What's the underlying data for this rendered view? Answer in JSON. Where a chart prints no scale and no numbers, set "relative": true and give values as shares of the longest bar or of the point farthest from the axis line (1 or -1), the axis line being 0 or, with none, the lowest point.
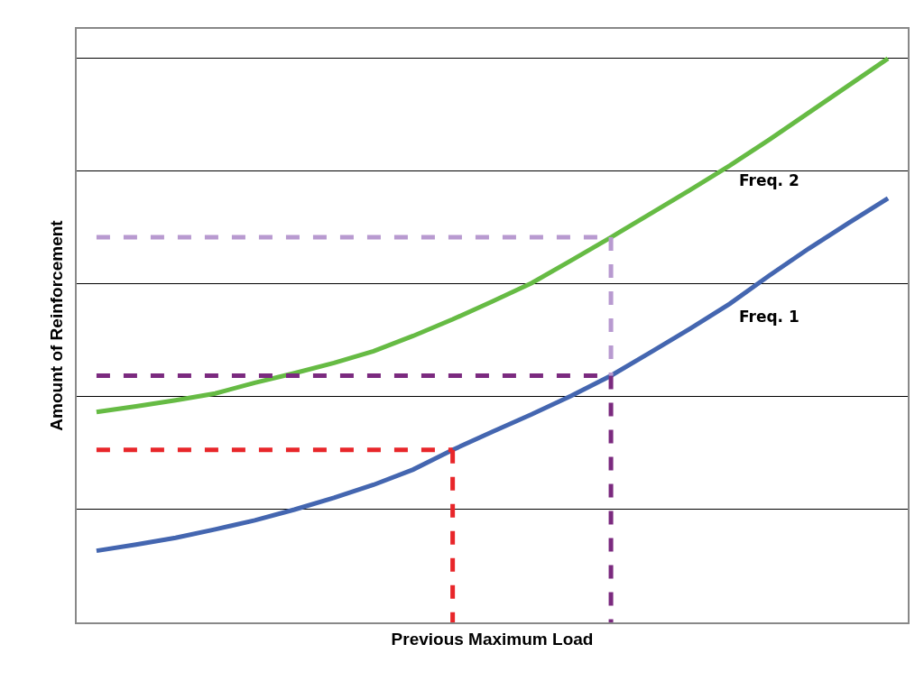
{
  "chart_data": {
    "type": "line",
    "relative": true,
    "xlabel": "Previous Maximum Load",
    "ylabel": "Amount of Reinforcement",
    "grid": "y",
    "legend": false,
    "marker": "none",
    "categories": [
      null,
      null,
      null,
      null,
      null,
      null,
      null,
      null,
      null,
      null,
      null,
      null,
      null,
      null,
      null,
      null,
      null,
      null,
      null,
      null,
      null
    ],
    "series": [
      {
        "name": "Freq. 1",
        "color": "#4466b0",
        "line_style": "solid",
        "values": [
          0.127,
          0.138,
          0.15,
          0.165,
          0.181,
          0.2,
          0.221,
          0.244,
          0.271,
          0.306,
          0.338,
          0.369,
          0.402,
          0.4375,
          0.479,
          0.521,
          0.565,
          0.615,
          0.663,
          0.708,
          0.752
        ]
      },
      {
        "name": "Freq. 2",
        "color": "#66bb44",
        "line_style": "solid",
        "values": [
          0.373,
          0.383,
          0.394,
          0.406,
          0.425,
          0.442,
          0.46,
          0.481,
          0.508,
          0.5375,
          0.569,
          0.602,
          0.642,
          0.683,
          0.725,
          0.767,
          0.81,
          0.856,
          0.904,
          0.952,
          1
        ]
      },
      {
        "color": "#e8262a",
        "line_style": "dashed",
        "values": [
          0.306,
          0.306,
          0.306,
          0.306,
          0.306,
          0.306,
          0.306,
          0.306,
          0.306,
          0.306,
          null,
          null,
          null,
          null,
          null,
          null,
          null,
          null,
          null,
          null,
          null
        ]
      },
      {
        "color": "#7b2a7f",
        "line_style": "dashed",
        "values": [
          0.4375,
          0.4375,
          0.4375,
          0.4375,
          0.4375,
          0.4375,
          0.4375,
          0.4375,
          0.4375,
          0.4375,
          0.4375,
          0.4375,
          0.4375,
          0.4375,
          null,
          null,
          null,
          null,
          null,
          null,
          null
        ]
      },
      {
        "color": "#b89ad0",
        "line_style": "dashed",
        "values": [
          0.683,
          0.683,
          0.683,
          0.683,
          0.683,
          0.683,
          0.683,
          0.683,
          0.683,
          0.683,
          0.683,
          0.683,
          0.683,
          0.683,
          null,
          null,
          null,
          null,
          null,
          null,
          null
        ]
      }
    ]
  }
}
